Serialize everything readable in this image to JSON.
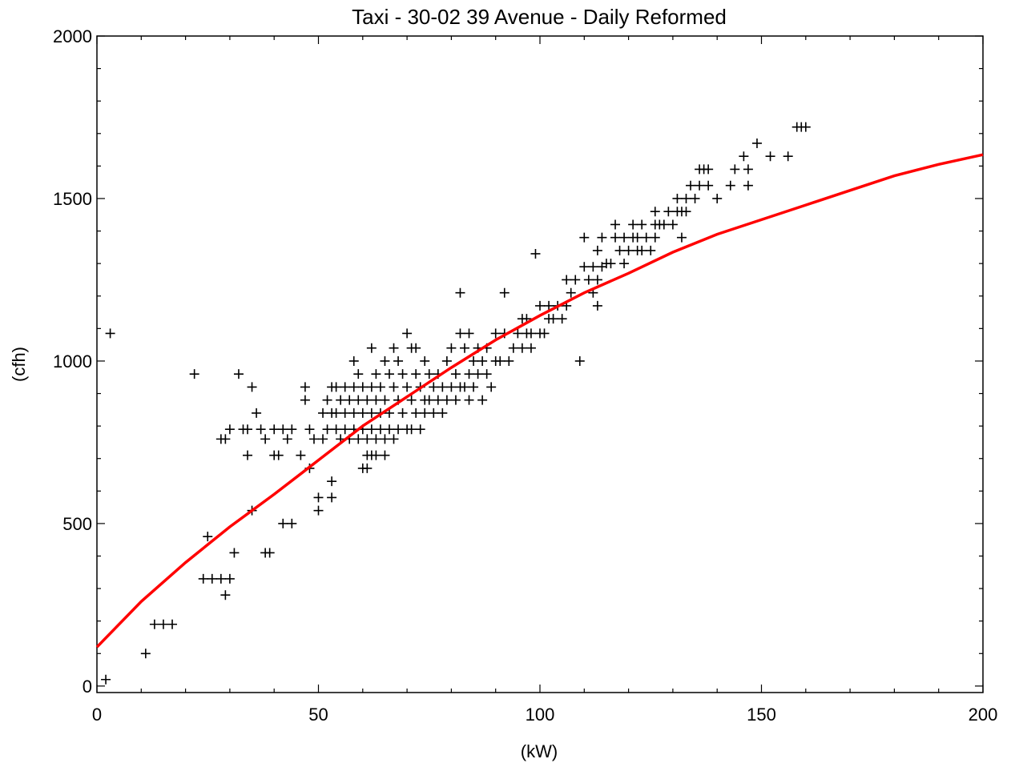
{
  "chart_data": {
    "type": "scatter",
    "title": "Taxi - 30-02 39 Avenue - Daily Reformed",
    "xlabel": "(kW)",
    "ylabel": "(cfh)",
    "xlim": [
      0,
      200
    ],
    "ylim": [
      -20,
      2000
    ],
    "x_ticks": [
      0,
      50,
      100,
      150,
      200
    ],
    "y_ticks": [
      0,
      500,
      1000,
      1500,
      2000
    ],
    "grid": false,
    "legend": "none",
    "colors": {
      "points": "#000000",
      "fit_line": "#ff0000"
    },
    "series": [
      {
        "kind": "scatter",
        "marker": "plus",
        "points": [
          [
            2,
            20
          ],
          [
            3,
            1085
          ],
          [
            11,
            100
          ],
          [
            13,
            190
          ],
          [
            15,
            190
          ],
          [
            17,
            190
          ],
          [
            22,
            960
          ],
          [
            24,
            330
          ],
          [
            25,
            460
          ],
          [
            26,
            330
          ],
          [
            28,
            330
          ],
          [
            28,
            760
          ],
          [
            29,
            280
          ],
          [
            29,
            760
          ],
          [
            30,
            330
          ],
          [
            30,
            790
          ],
          [
            31,
            410
          ],
          [
            32,
            960
          ],
          [
            33,
            790
          ],
          [
            34,
            790
          ],
          [
            34,
            710
          ],
          [
            35,
            540
          ],
          [
            35,
            920
          ],
          [
            36,
            840
          ],
          [
            37,
            790
          ],
          [
            38,
            410
          ],
          [
            38,
            760
          ],
          [
            39,
            410
          ],
          [
            40,
            790
          ],
          [
            40,
            710
          ],
          [
            41,
            710
          ],
          [
            42,
            500
          ],
          [
            42,
            790
          ],
          [
            43,
            760
          ],
          [
            44,
            790
          ],
          [
            44,
            500
          ],
          [
            46,
            710
          ],
          [
            47,
            920
          ],
          [
            47,
            880
          ],
          [
            48,
            790
          ],
          [
            48,
            670
          ],
          [
            49,
            760
          ],
          [
            50,
            580
          ],
          [
            50,
            540
          ],
          [
            51,
            840
          ],
          [
            51,
            760
          ],
          [
            52,
            880
          ],
          [
            52,
            790
          ],
          [
            53,
            920
          ],
          [
            53,
            840
          ],
          [
            53,
            630
          ],
          [
            53,
            580
          ],
          [
            54,
            920
          ],
          [
            54,
            840
          ],
          [
            54,
            790
          ],
          [
            55,
            880
          ],
          [
            55,
            760
          ],
          [
            56,
            920
          ],
          [
            56,
            840
          ],
          [
            56,
            790
          ],
          [
            57,
            880
          ],
          [
            57,
            760
          ],
          [
            58,
            1000
          ],
          [
            58,
            920
          ],
          [
            58,
            840
          ],
          [
            58,
            790
          ],
          [
            59,
            960
          ],
          [
            59,
            880
          ],
          [
            59,
            760
          ],
          [
            60,
            920
          ],
          [
            60,
            840
          ],
          [
            60,
            790
          ],
          [
            60,
            670
          ],
          [
            61,
            880
          ],
          [
            61,
            760
          ],
          [
            61,
            710
          ],
          [
            61,
            670
          ],
          [
            62,
            1040
          ],
          [
            62,
            920
          ],
          [
            62,
            840
          ],
          [
            62,
            790
          ],
          [
            62,
            710
          ],
          [
            63,
            960
          ],
          [
            63,
            880
          ],
          [
            63,
            760
          ],
          [
            63,
            710
          ],
          [
            64,
            920
          ],
          [
            64,
            840
          ],
          [
            64,
            790
          ],
          [
            65,
            1000
          ],
          [
            65,
            880
          ],
          [
            65,
            760
          ],
          [
            65,
            710
          ],
          [
            66,
            960
          ],
          [
            66,
            840
          ],
          [
            66,
            790
          ],
          [
            67,
            1040
          ],
          [
            67,
            920
          ],
          [
            67,
            760
          ],
          [
            68,
            1000
          ],
          [
            68,
            880
          ],
          [
            68,
            790
          ],
          [
            69,
            960
          ],
          [
            69,
            840
          ],
          [
            70,
            1085
          ],
          [
            70,
            920
          ],
          [
            70,
            790
          ],
          [
            71,
            1040
          ],
          [
            71,
            880
          ],
          [
            71,
            790
          ],
          [
            72,
            1040
          ],
          [
            72,
            960
          ],
          [
            72,
            840
          ],
          [
            73,
            920
          ],
          [
            73,
            790
          ],
          [
            74,
            1000
          ],
          [
            74,
            880
          ],
          [
            74,
            840
          ],
          [
            75,
            960
          ],
          [
            75,
            880
          ],
          [
            76,
            920
          ],
          [
            76,
            840
          ],
          [
            77,
            960
          ],
          [
            77,
            880
          ],
          [
            78,
            920
          ],
          [
            78,
            840
          ],
          [
            79,
            1000
          ],
          [
            79,
            880
          ],
          [
            80,
            1040
          ],
          [
            80,
            920
          ],
          [
            81,
            960
          ],
          [
            81,
            880
          ],
          [
            82,
            1210
          ],
          [
            82,
            1085
          ],
          [
            82,
            920
          ],
          [
            83,
            1040
          ],
          [
            83,
            920
          ],
          [
            84,
            1085
          ],
          [
            84,
            960
          ],
          [
            84,
            880
          ],
          [
            85,
            1000
          ],
          [
            85,
            920
          ],
          [
            86,
            1040
          ],
          [
            86,
            960
          ],
          [
            87,
            1000
          ],
          [
            87,
            880
          ],
          [
            88,
            1040
          ],
          [
            88,
            960
          ],
          [
            89,
            920
          ],
          [
            90,
            1085
          ],
          [
            90,
            1000
          ],
          [
            91,
            1000
          ],
          [
            92,
            1210
          ],
          [
            92,
            1085
          ],
          [
            93,
            1000
          ],
          [
            94,
            1040
          ],
          [
            95,
            1085
          ],
          [
            96,
            1130
          ],
          [
            96,
            1040
          ],
          [
            97,
            1130
          ],
          [
            97,
            1085
          ],
          [
            98,
            1040
          ],
          [
            98,
            1085
          ],
          [
            99,
            1330
          ],
          [
            100,
            1085
          ],
          [
            100,
            1170
          ],
          [
            101,
            1085
          ],
          [
            102,
            1130
          ],
          [
            102,
            1170
          ],
          [
            103,
            1130
          ],
          [
            104,
            1170
          ],
          [
            105,
            1130
          ],
          [
            106,
            1170
          ],
          [
            106,
            1250
          ],
          [
            107,
            1210
          ],
          [
            108,
            1250
          ],
          [
            109,
            1000
          ],
          [
            110,
            1290
          ],
          [
            110,
            1380
          ],
          [
            111,
            1250
          ],
          [
            112,
            1210
          ],
          [
            112,
            1290
          ],
          [
            113,
            1340
          ],
          [
            113,
            1250
          ],
          [
            113,
            1170
          ],
          [
            114,
            1380
          ],
          [
            114,
            1290
          ],
          [
            115,
            1300
          ],
          [
            116,
            1300
          ],
          [
            117,
            1420
          ],
          [
            117,
            1380
          ],
          [
            118,
            1340
          ],
          [
            119,
            1380
          ],
          [
            119,
            1300
          ],
          [
            120,
            1340
          ],
          [
            121,
            1420
          ],
          [
            121,
            1380
          ],
          [
            122,
            1340
          ],
          [
            122,
            1380
          ],
          [
            123,
            1420
          ],
          [
            123,
            1340
          ],
          [
            124,
            1380
          ],
          [
            125,
            1340
          ],
          [
            126,
            1460
          ],
          [
            126,
            1420
          ],
          [
            126,
            1380
          ],
          [
            127,
            1420
          ],
          [
            128,
            1420
          ],
          [
            129,
            1460
          ],
          [
            130,
            1420
          ],
          [
            131,
            1500
          ],
          [
            131,
            1460
          ],
          [
            132,
            1460
          ],
          [
            132,
            1380
          ],
          [
            133,
            1500
          ],
          [
            133,
            1460
          ],
          [
            134,
            1540
          ],
          [
            135,
            1500
          ],
          [
            136,
            1590
          ],
          [
            136,
            1540
          ],
          [
            137,
            1590
          ],
          [
            138,
            1540
          ],
          [
            138,
            1590
          ],
          [
            140,
            1500
          ],
          [
            143,
            1540
          ],
          [
            144,
            1590
          ],
          [
            146,
            1630
          ],
          [
            147,
            1540
          ],
          [
            147,
            1590
          ],
          [
            149,
            1670
          ],
          [
            152,
            1630
          ],
          [
            156,
            1630
          ],
          [
            158,
            1720
          ],
          [
            159,
            1720
          ],
          [
            160,
            1720
          ]
        ]
      },
      {
        "kind": "line",
        "points": [
          [
            0,
            120
          ],
          [
            10,
            260
          ],
          [
            20,
            380
          ],
          [
            30,
            490
          ],
          [
            40,
            590
          ],
          [
            50,
            695
          ],
          [
            60,
            800
          ],
          [
            70,
            890
          ],
          [
            80,
            980
          ],
          [
            90,
            1065
          ],
          [
            100,
            1140
          ],
          [
            110,
            1210
          ],
          [
            120,
            1270
          ],
          [
            130,
            1335
          ],
          [
            140,
            1390
          ],
          [
            150,
            1435
          ],
          [
            160,
            1480
          ],
          [
            170,
            1525
          ],
          [
            180,
            1570
          ],
          [
            190,
            1605
          ],
          [
            200,
            1635
          ]
        ]
      }
    ]
  }
}
